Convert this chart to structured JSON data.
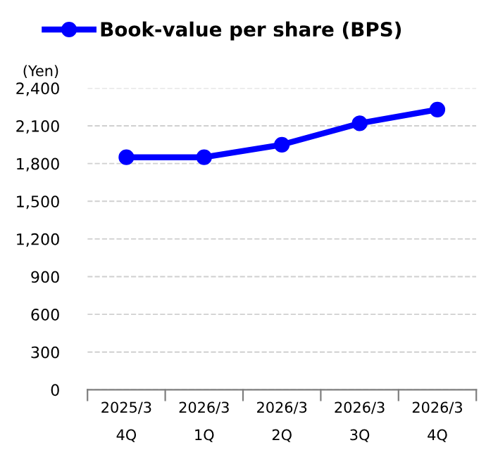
{
  "chart_data": {
    "type": "line",
    "ylabel": "(Yen)",
    "categories": [
      "2025/3\n4Q",
      "2026/3\n1Q",
      "2026/3\n2Q",
      "2026/3\n3Q",
      "2026/3\n4Q"
    ],
    "series": [
      {
        "name": "Book-value per share (BPS)",
        "color": "#0000ff",
        "values": [
          1850,
          1850,
          1950,
          2120,
          2230
        ]
      }
    ],
    "ylim": [
      0,
      2400
    ],
    "yticks": [
      {
        "value": 0,
        "label": "0"
      },
      {
        "value": 300,
        "label": "300"
      },
      {
        "value": 600,
        "label": "600"
      },
      {
        "value": 900,
        "label": "900"
      },
      {
        "value": 1200,
        "label": "1,200"
      },
      {
        "value": 1500,
        "label": "1,500"
      },
      {
        "value": 1800,
        "label": "1,800"
      },
      {
        "value": 2100,
        "label": "2,100"
      },
      {
        "value": 2400,
        "label": "2,400"
      }
    ],
    "grid": "y",
    "legend": "top",
    "marker": "circle",
    "line_style": "solid"
  }
}
